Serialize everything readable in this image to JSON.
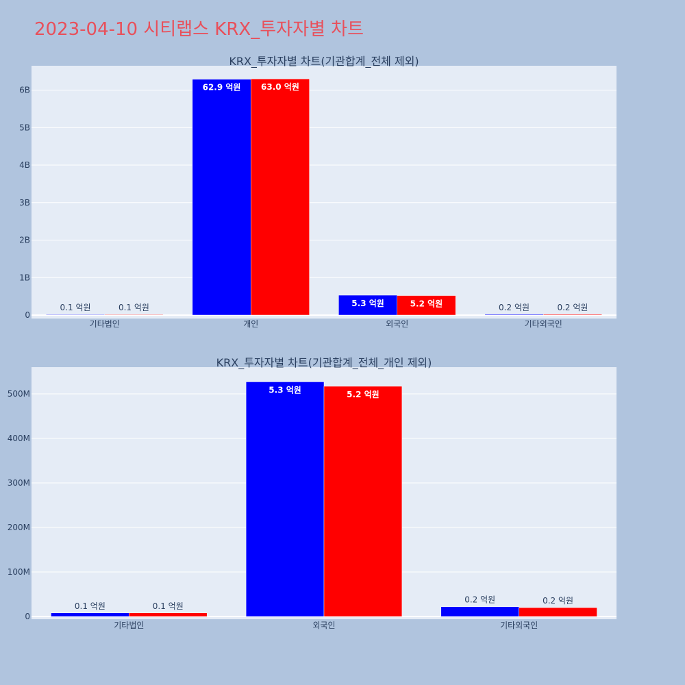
{
  "title": "2023-04-10 시티랩스 KRX_투자자별 차트",
  "colors": {
    "background": "#b0c4de",
    "plot_background": "#e5ecf6",
    "buy": "#0000ff",
    "sell": "#ff0000",
    "title": "#e8505b",
    "text": "#2a3f5f"
  },
  "chart_data": [
    {
      "type": "bar",
      "title": "KRX_투자자별 차트(기관합계_전체 제외)",
      "categories": [
        "기타법인",
        "개인",
        "외국인",
        "기타외국인"
      ],
      "series": [
        {
          "values": [
            10000000,
            6290000000,
            530000000,
            20000000
          ],
          "labels": [
            "0.1 억원",
            "62.9 억원",
            "5.3 억원",
            "0.2 억원"
          ],
          "color": "#0000ff"
        },
        {
          "values": [
            10000000,
            6300000000,
            520000000,
            20000000
          ],
          "labels": [
            "0.1 억원",
            "63.0 억원",
            "5.2 억원",
            "0.2 억원"
          ],
          "color": "#ff0000"
        }
      ],
      "ylim": [
        0,
        6650000000
      ],
      "yticks": [
        0,
        1000000000,
        2000000000,
        3000000000,
        4000000000,
        5000000000,
        6000000000
      ],
      "yticklabels": [
        "0",
        "1B",
        "2B",
        "3B",
        "4B",
        "5B",
        "6B"
      ],
      "grid": true,
      "legend": "none"
    },
    {
      "type": "bar",
      "title": "KRX_투자자별 차트(기관합계_전체_개인 제외)",
      "categories": [
        "기타법인",
        "외국인",
        "기타외국인"
      ],
      "series": [
        {
          "values": [
            8000000,
            527000000,
            22000000
          ],
          "labels": [
            "0.1 억원",
            "5.3 억원",
            "0.2 억원"
          ],
          "color": "#0000ff"
        },
        {
          "values": [
            8000000,
            517000000,
            20000000
          ],
          "labels": [
            "0.1 억원",
            "5.2 억원",
            "0.2 억원"
          ],
          "color": "#ff0000"
        }
      ],
      "ylim": [
        0,
        560000000
      ],
      "yticks": [
        0,
        100000000,
        200000000,
        300000000,
        400000000,
        500000000
      ],
      "yticklabels": [
        "0",
        "100M",
        "200M",
        "300M",
        "400M",
        "500M"
      ],
      "grid": true,
      "legend": "none"
    }
  ]
}
